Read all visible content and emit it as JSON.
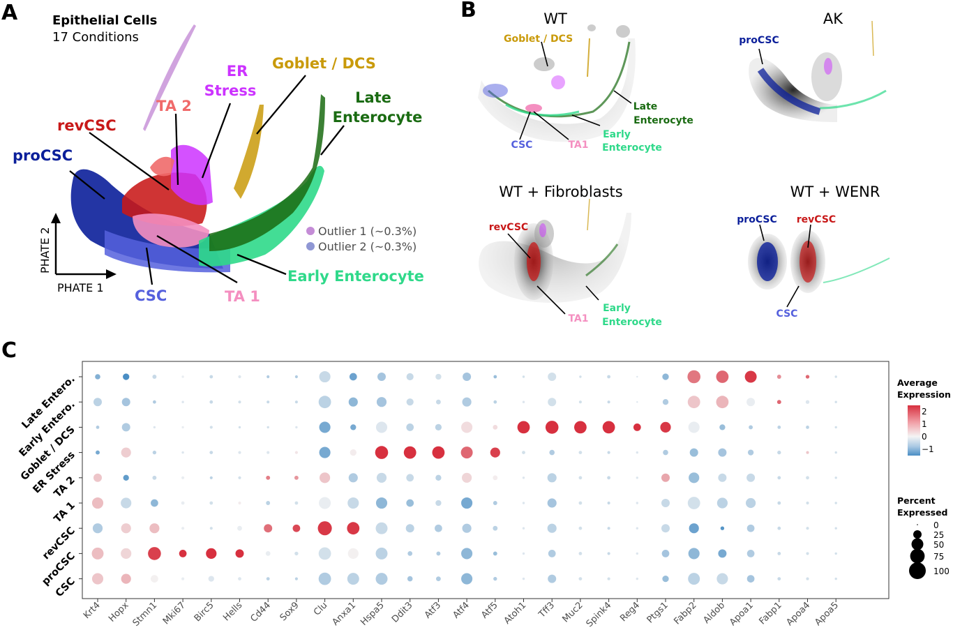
{
  "panels": {
    "a": {
      "letter": "A",
      "title": "Epithelial Cells",
      "subtitle": "17 Conditions",
      "axis_x": "PHATE 1",
      "axis_y": "PHATE 2",
      "labels": [
        {
          "text": "ER",
          "color": "#cc33ff"
        },
        {
          "text": "Stress",
          "color": "#cc33ff"
        },
        {
          "text": "Goblet / DCS",
          "color": "#c99a0a"
        },
        {
          "text": "Late",
          "color": "#1a6b12"
        },
        {
          "text": "Enterocyte",
          "color": "#1a6b12"
        },
        {
          "text": "TA 2",
          "color": "#f06a6a"
        },
        {
          "text": "revCSC",
          "color": "#c81818"
        },
        {
          "text": "proCSC",
          "color": "#0b1f9a"
        },
        {
          "text": "CSC",
          "color": "#5560dd"
        },
        {
          "text": "TA 1",
          "color": "#f48fc0"
        },
        {
          "text": "Early Enterocyte",
          "color": "#2fd98a"
        }
      ],
      "outliers": [
        {
          "text": "Outlier 1 (~0.3%)",
          "color": "#c48cd6"
        },
        {
          "text": "Outlier 2 (~0.3%)",
          "color": "#8f97d4"
        }
      ]
    },
    "b": {
      "letter": "B",
      "titles": [
        "WT",
        "AK",
        "WT + Fibroblasts",
        "WT + WENR"
      ],
      "wt_labels": [
        {
          "text": "Goblet / DCS",
          "color": "#c99a0a"
        },
        {
          "text": "Late",
          "color": "#1a6b12"
        },
        {
          "text": "Enterocyte",
          "color": "#1a6b12"
        },
        {
          "text": "CSC",
          "color": "#5560dd"
        },
        {
          "text": "TA1",
          "color": "#f48fc0"
        },
        {
          "text": "Early",
          "color": "#2fd98a"
        },
        {
          "text": "Enterocyte",
          "color": "#2fd98a"
        }
      ],
      "ak_labels": [
        {
          "text": "proCSC",
          "color": "#0b1f9a"
        }
      ],
      "fib_labels": [
        {
          "text": "revCSC",
          "color": "#c81818"
        },
        {
          "text": "TA1",
          "color": "#f48fc0"
        },
        {
          "text": "Early",
          "color": "#2fd98a"
        },
        {
          "text": "Enterocyte",
          "color": "#2fd98a"
        }
      ],
      "wenr_labels": [
        {
          "text": "proCSC",
          "color": "#0b1f9a"
        },
        {
          "text": "revCSC",
          "color": "#c81818"
        },
        {
          "text": "CSC",
          "color": "#5560dd"
        }
      ]
    },
    "c": {
      "letter": "C"
    }
  },
  "chart_data": {
    "type": "dotplot",
    "genes": [
      "Krt4",
      "Hopx",
      "Stmn1",
      "Mki67",
      "Birc5",
      "Hells",
      "Cd44",
      "Sox9",
      "Clu",
      "Anxa1",
      "Hspa5",
      "Ddit3",
      "Atf3",
      "Atf4",
      "Atf5",
      "Atoh1",
      "Tff3",
      "Muc2",
      "Spink4",
      "Reg4",
      "Ptgs1",
      "Fabp2",
      "Aldob",
      "Apoa1",
      "Fabp1",
      "Apoa4",
      "Apoa5"
    ],
    "rows": [
      "Late Entero.",
      "Early Entero.",
      "Goblet / DCS",
      "ER Stress",
      "TA 2",
      "TA 1",
      "revCSC",
      "proCSC",
      "CSC"
    ],
    "percent": [
      [
        10,
        15,
        6,
        2,
        4,
        3,
        3,
        3,
        45,
        20,
        25,
        18,
        12,
        25,
        4,
        2,
        25,
        2,
        4,
        1,
        15,
        60,
        55,
        50,
        6,
        5,
        2
      ],
      [
        25,
        25,
        4,
        2,
        4,
        3,
        3,
        3,
        55,
        30,
        35,
        18,
        8,
        30,
        4,
        2,
        25,
        3,
        3,
        1,
        12,
        55,
        55,
        25,
        6,
        5,
        2
      ],
      [
        4,
        25,
        2,
        2,
        3,
        2,
        2,
        2,
        45,
        12,
        45,
        20,
        15,
        45,
        8,
        55,
        60,
        55,
        55,
        20,
        40,
        45,
        12,
        6,
        4,
        4,
        2
      ],
      [
        6,
        35,
        5,
        2,
        4,
        3,
        3,
        3,
        45,
        15,
        60,
        55,
        55,
        50,
        35,
        4,
        10,
        4,
        3,
        2,
        10,
        25,
        25,
        12,
        5,
        3,
        2
      ],
      [
        25,
        12,
        6,
        3,
        3,
        3,
        6,
        6,
        40,
        30,
        35,
        20,
        12,
        35,
        8,
        2,
        30,
        4,
        4,
        2,
        25,
        40,
        25,
        25,
        4,
        4,
        2
      ],
      [
        45,
        40,
        20,
        4,
        4,
        3,
        6,
        4,
        50,
        45,
        45,
        20,
        12,
        45,
        6,
        2,
        30,
        4,
        3,
        2,
        25,
        55,
        40,
        35,
        4,
        3,
        2
      ],
      [
        35,
        35,
        35,
        3,
        3,
        8,
        25,
        20,
        70,
        55,
        50,
        25,
        20,
        30,
        8,
        2,
        30,
        4,
        3,
        2,
        25,
        35,
        5,
        20,
        4,
        3,
        2
      ],
      [
        50,
        40,
        60,
        20,
        40,
        25,
        8,
        5,
        55,
        40,
        50,
        8,
        6,
        45,
        6,
        2,
        20,
        4,
        3,
        2,
        20,
        45,
        25,
        20,
        4,
        3,
        2
      ],
      [
        45,
        35,
        20,
        3,
        12,
        4,
        4,
        3,
        55,
        50,
        50,
        10,
        8,
        45,
        5,
        2,
        25,
        4,
        3,
        2,
        15,
        50,
        45,
        20,
        4,
        3,
        2
      ]
    ],
    "expression": [
      [
        -1,
        -1.5,
        -0.4,
        -0.1,
        -0.4,
        -0.2,
        -0.6,
        -0.6,
        -0.4,
        -1.2,
        -0.7,
        -0.4,
        -0.3,
        -0.7,
        -0.8,
        -0.3,
        -0.3,
        -0.3,
        -0.4,
        -0.2,
        -0.9,
        1.6,
        1.8,
        2.4,
        1.3,
        1.8,
        -0.3
      ],
      [
        -0.5,
        -0.7,
        -0.6,
        -0.2,
        -0.4,
        -0.3,
        -0.4,
        -0.4,
        -0.5,
        -0.9,
        -0.7,
        -0.4,
        -0.4,
        -0.6,
        -0.5,
        -0.2,
        -0.3,
        -0.3,
        -0.4,
        -0.2,
        -0.6,
        0.6,
        0.8,
        -0.1,
        1.8,
        -0.2,
        -0.3
      ],
      [
        -0.6,
        -0.6,
        -0.2,
        -0.1,
        -0.3,
        -0.3,
        -0.3,
        -0.2,
        -1.1,
        -1.1,
        -0.2,
        -0.5,
        -0.5,
        0.3,
        0.3,
        2.5,
        2.5,
        2.5,
        2.5,
        2.5,
        2.4,
        -0.1,
        -0.8,
        -0.6,
        -0.5,
        -0.5,
        -0.3
      ],
      [
        -1.1,
        0.5,
        -0.5,
        -0.2,
        -0.4,
        -0.2,
        -0.2,
        0.2,
        -1.1,
        0.1,
        2.5,
        2.5,
        2.5,
        1.8,
        2.3,
        -0.3,
        -0.6,
        -0.3,
        -0.4,
        -0.2,
        -0.6,
        -0.8,
        -0.7,
        -0.6,
        -0.4,
        0.6,
        -0.3
      ],
      [
        0.6,
        -1.3,
        -0.4,
        -0.1,
        -0.5,
        -0.3,
        1.5,
        1.2,
        0.6,
        -0.6,
        -0.4,
        -0.4,
        -0.5,
        0.4,
        0.1,
        -0.2,
        -0.5,
        -0.3,
        -0.4,
        -0.2,
        1,
        -0.8,
        -0.4,
        -0.4,
        -0.4,
        -0.3,
        -0.3
      ],
      [
        0.7,
        -0.4,
        -0.9,
        -0.1,
        -0.3,
        0.1,
        -0.5,
        -0.3,
        -0.1,
        -0.4,
        -0.9,
        -0.8,
        -0.4,
        -1.1,
        -0.6,
        -0.2,
        -0.7,
        -0.3,
        -0.4,
        -0.2,
        -0.4,
        -0.3,
        -0.5,
        -0.5,
        -0.4,
        -0.3,
        -0.3
      ],
      [
        -0.6,
        0.5,
        0.7,
        -0.1,
        -0.3,
        -0.1,
        1.7,
        2.2,
        2.4,
        2.4,
        -0.4,
        -0.5,
        -0.6,
        -0.6,
        -0.5,
        -0.2,
        -0.5,
        -0.3,
        -0.4,
        -0.2,
        -0.4,
        -1.2,
        -1.4,
        -0.6,
        -0.4,
        -0.3,
        -0.3
      ],
      [
        0.7,
        0.4,
        2.3,
        2.5,
        2.5,
        2.5,
        -0.1,
        -0.3,
        -0.3,
        0.05,
        -0.5,
        -0.6,
        -0.6,
        -0.9,
        -0.8,
        -0.2,
        -0.6,
        -0.3,
        -0.4,
        -0.2,
        -0.7,
        -0.9,
        -1.1,
        -0.6,
        -0.4,
        -0.3,
        -0.3
      ],
      [
        0.6,
        0.8,
        0.05,
        -0.1,
        -0.2,
        -0.2,
        -0.5,
        -0.5,
        -0.6,
        -0.5,
        -0.6,
        -0.7,
        -0.6,
        -0.9,
        -0.6,
        -0.2,
        -0.6,
        -0.3,
        -0.3,
        -0.2,
        -0.8,
        -0.5,
        -0.4,
        -0.7,
        -0.4,
        -0.3,
        -0.3
      ]
    ],
    "colorbar": {
      "title_line1": "Average",
      "title_line2": "Expression",
      "ticks": [
        "2",
        "1",
        "0",
        "−1"
      ],
      "colors": {
        "high": "#d7303f",
        "mid": "#f4f4f4",
        "low": "#4a8ec4"
      },
      "range": [
        -1.5,
        2.5
      ]
    },
    "size_legend": {
      "title_line1": "Percent",
      "title_line2": "Expressed",
      "ticks": [
        "0",
        "25",
        "50",
        "75",
        "100"
      ],
      "values": [
        0,
        25,
        50,
        75,
        100
      ]
    }
  }
}
